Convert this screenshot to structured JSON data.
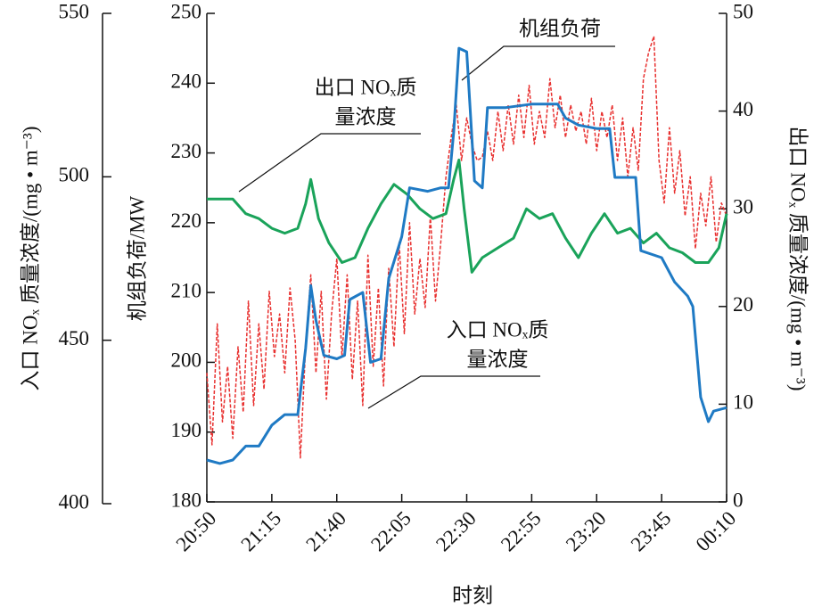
{
  "chart_data": {
    "type": "line",
    "xlabel": "时刻",
    "ylabel": "机组负荷/MW",
    "y2label": "出口 NOₓ 质量浓度/(mg • m⁻³)",
    "y3label": "入口 NOₓ 质量浓度/(mg • m⁻³)",
    "xlim": [
      "20:50",
      "00:10"
    ],
    "xticks": [
      "20:50",
      "21:15",
      "21:40",
      "22:05",
      "22:30",
      "22:55",
      "23:20",
      "23:45",
      "00:10"
    ],
    "ylim": [
      180,
      250
    ],
    "yticks": [
      180,
      190,
      200,
      210,
      220,
      230,
      240,
      250
    ],
    "y2lim": [
      0,
      50
    ],
    "y2ticks": [
      0,
      10,
      20,
      30,
      40,
      50
    ],
    "y3lim": [
      400,
      550
    ],
    "y3ticks": [
      400,
      450,
      500,
      550
    ],
    "annotations": [
      {
        "lines": [
          "机组负荷"
        ]
      },
      {
        "lines": [
          "出口 NOₓ质",
          "量浓度"
        ]
      },
      {
        "lines": [
          "入口 NOₓ质",
          "量浓度"
        ]
      }
    ],
    "series": [
      {
        "name": "入口 NOₓ质量浓度",
        "color": "#e8302f",
        "axis": "y3",
        "dashed": true,
        "x": [
          "20:50",
          "20:52",
          "20:54",
          "20:56",
          "20:58",
          "21:00",
          "21:02",
          "21:04",
          "21:06",
          "21:08",
          "21:10",
          "21:12",
          "21:14",
          "21:16",
          "21:18",
          "21:20",
          "21:22",
          "21:24",
          "21:26",
          "21:28",
          "21:30",
          "21:32",
          "21:34",
          "21:36",
          "21:38",
          "21:40",
          "21:42",
          "21:44",
          "21:46",
          "21:48",
          "21:50",
          "21:52",
          "21:54",
          "21:56",
          "21:58",
          "22:00",
          "22:02",
          "22:04",
          "22:06",
          "22:08",
          "22:10",
          "22:12",
          "22:14",
          "22:16",
          "22:18",
          "22:20",
          "22:22",
          "22:24",
          "22:26",
          "22:28",
          "22:30",
          "22:32",
          "22:34",
          "22:36",
          "22:38",
          "22:40",
          "22:42",
          "22:44",
          "22:46",
          "22:48",
          "22:50",
          "22:52",
          "22:54",
          "22:56",
          "22:58",
          "23:00",
          "23:02",
          "23:04",
          "23:06",
          "23:08",
          "23:10",
          "23:12",
          "23:14",
          "23:16",
          "23:18",
          "23:20",
          "23:22",
          "23:24",
          "23:26",
          "23:28",
          "23:30",
          "23:32",
          "23:34",
          "23:36",
          "23:38",
          "23:40",
          "23:42",
          "23:44",
          "23:46",
          "23:48",
          "23:50",
          "23:52",
          "23:54",
          "23:56",
          "23:58",
          "00:00",
          "00:02",
          "00:04",
          "00:06",
          "00:08",
          "00:10"
        ],
        "values": [
          440,
          418,
          455,
          425,
          442,
          420,
          448,
          428,
          462,
          430,
          455,
          435,
          465,
          445,
          458,
          440,
          466,
          450,
          414,
          448,
          470,
          440,
          465,
          432,
          458,
          475,
          445,
          470,
          438,
          462,
          430,
          476,
          442,
          466,
          436,
          472,
          448,
          480,
          452,
          486,
          458,
          475,
          460,
          488,
          462,
          480,
          500,
          512,
          522,
          505,
          518,
          510,
          505,
          506,
          514,
          505,
          520,
          508,
          522,
          510,
          525,
          512,
          528,
          510,
          520,
          512,
          530,
          515,
          525,
          512,
          522,
          514,
          520,
          510,
          524,
          508,
          520,
          512,
          522,
          505,
          518,
          500,
          515,
          502,
          530,
          538,
          543,
          505,
          492,
          515,
          495,
          508,
          488,
          500,
          478,
          495,
          485,
          500,
          480,
          492,
          488
        ]
      },
      {
        "name": "出口 NOₓ质量浓度",
        "color": "#1aa35a",
        "axis": "y2",
        "x": [
          "20:50",
          "20:55",
          "21:00",
          "21:05",
          "21:10",
          "21:15",
          "21:20",
          "21:25",
          "21:28",
          "21:30",
          "21:33",
          "21:37",
          "21:42",
          "21:47",
          "21:52",
          "21:57",
          "22:02",
          "22:07",
          "22:12",
          "22:17",
          "22:22",
          "22:25",
          "22:27",
          "22:29",
          "22:32",
          "22:36",
          "22:42",
          "22:48",
          "22:53",
          "22:58",
          "23:03",
          "23:08",
          "23:13",
          "23:18",
          "23:23",
          "23:28",
          "23:33",
          "23:38",
          "23:43",
          "23:48",
          "23:53",
          "23:58",
          "00:03",
          "00:07",
          "00:10"
        ],
        "values": [
          31,
          31,
          31,
          29.5,
          29,
          28,
          27.5,
          28,
          30.5,
          33,
          29,
          26.5,
          24.5,
          25,
          28,
          30.5,
          32.5,
          31.5,
          30,
          29,
          29.5,
          33,
          35,
          30,
          23.5,
          25,
          26,
          27,
          30,
          29,
          29.5,
          27,
          25,
          27.5,
          29.5,
          27.5,
          28,
          26.5,
          27.5,
          26,
          25.5,
          24.5,
          24.5,
          26,
          29.5
        ]
      },
      {
        "name": "机组负荷",
        "color": "#1f7ac4",
        "axis": "y",
        "x": [
          "20:50",
          "20:55",
          "21:00",
          "21:05",
          "21:10",
          "21:15",
          "21:20",
          "21:25",
          "21:28",
          "21:30",
          "21:32",
          "21:35",
          "21:40",
          "21:43",
          "21:45",
          "21:50",
          "21:53",
          "21:57",
          "22:00",
          "22:05",
          "22:08",
          "22:15",
          "22:20",
          "22:23",
          "22:25",
          "22:27",
          "22:30",
          "22:33",
          "22:36",
          "22:38",
          "22:45",
          "22:55",
          "23:05",
          "23:08",
          "23:13",
          "23:20",
          "23:25",
          "23:27",
          "23:35",
          "23:37",
          "23:45",
          "23:50",
          "23:55",
          "23:57",
          "00:00",
          "00:03",
          "00:05",
          "00:10"
        ],
        "values": [
          186,
          185.5,
          186,
          188,
          188,
          191,
          192.5,
          192.5,
          202,
          211,
          206,
          201,
          200.5,
          201,
          209,
          210,
          200,
          200.5,
          212,
          218,
          225,
          224.5,
          225,
          225,
          233,
          245,
          244.5,
          226,
          225,
          236.5,
          236.5,
          237,
          237,
          235,
          234,
          233.5,
          233.5,
          226.5,
          226.5,
          216,
          215,
          211.5,
          209.5,
          208,
          195,
          191.5,
          193,
          193.5
        ]
      }
    ]
  }
}
